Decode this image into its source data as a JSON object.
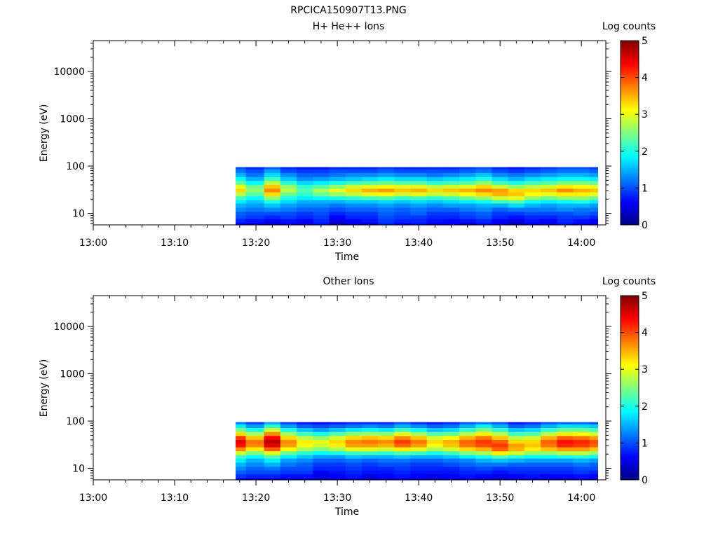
{
  "figure": {
    "title": "RPCICA150907T13.PNG"
  },
  "colorbar": {
    "label": "Log counts",
    "ticks": [
      "0",
      "1",
      "2",
      "3",
      "4",
      "5"
    ],
    "range": [
      0,
      5
    ]
  },
  "chart_data": [
    {
      "type": "heatmap",
      "title": "H+ He++ Ions",
      "xlabel": "Time",
      "ylabel": "Energy (eV)",
      "xticks": [
        "13:00",
        "13:10",
        "13:20",
        "13:30",
        "13:40",
        "13:50",
        "14:00"
      ],
      "yticks": [
        "10",
        "100",
        "1000",
        "10000"
      ],
      "xlim": [
        "13:00",
        "14:03"
      ],
      "ylim": [
        5.7,
        45000
      ],
      "yscale": "log",
      "zlabel": "Log counts",
      "zlim": [
        0,
        5
      ],
      "colormap": "jet",
      "data_coverage": {
        "start": "13:17:30",
        "end": "14:02",
        "energy_range_eV": [
          5.7,
          95
        ]
      },
      "energy_bins_eV": [
        6,
        7,
        8.5,
        10,
        12,
        15,
        18,
        21,
        26,
        31,
        37,
        45,
        54,
        66,
        80,
        95
      ],
      "times": [
        "13:17:30",
        "13:20",
        "13:22",
        "13:24",
        "13:26",
        "13:28",
        "13:30",
        "13:32",
        "13:34",
        "13:36",
        "13:38",
        "13:40",
        "13:42",
        "13:44",
        "13:46",
        "13:48",
        "13:50",
        "13:52",
        "13:54",
        "13:56",
        "13:58",
        "14:00",
        "14:02"
      ],
      "values": [
        [
          0.6,
          0.5,
          0.4,
          0.6,
          0.5,
          0.7,
          0.3,
          0.5,
          0.4,
          0.8,
          0.6,
          0.7,
          0.5,
          0.6,
          0.4,
          0.7,
          0.5,
          0.3,
          0.6,
          0.5,
          0.7,
          0.6,
          0.5
        ],
        [
          0.8,
          0.7,
          0.6,
          0.7,
          0.6,
          0.8,
          0.5,
          0.6,
          0.7,
          0.9,
          0.8,
          0.8,
          0.7,
          0.6,
          0.7,
          0.8,
          0.6,
          0.5,
          0.7,
          0.6,
          0.8,
          0.7,
          0.6
        ],
        [
          1.0,
          0.9,
          0.8,
          0.9,
          0.8,
          0.9,
          0.6,
          0.8,
          0.8,
          1.0,
          0.9,
          0.9,
          0.8,
          0.8,
          0.9,
          1.0,
          0.8,
          0.7,
          0.8,
          0.8,
          0.9,
          0.9,
          0.8
        ],
        [
          1.1,
          1.0,
          1.0,
          1.0,
          0.9,
          1.0,
          0.8,
          0.9,
          0.9,
          1.1,
          1.0,
          1.1,
          0.9,
          0.9,
          1.0,
          1.1,
          0.9,
          0.9,
          1.0,
          1.0,
          1.0,
          1.1,
          1.0
        ],
        [
          1.3,
          1.2,
          1.3,
          1.2,
          1.1,
          1.1,
          1.0,
          1.1,
          1.1,
          1.2,
          1.1,
          1.2,
          1.1,
          1.1,
          1.2,
          1.3,
          1.1,
          1.2,
          1.2,
          1.2,
          1.3,
          1.2,
          1.2
        ],
        [
          1.5,
          1.4,
          1.6,
          1.4,
          1.3,
          1.3,
          1.2,
          1.3,
          1.3,
          1.4,
          1.3,
          1.4,
          1.3,
          1.4,
          1.4,
          1.5,
          1.5,
          1.7,
          1.5,
          1.4,
          1.5,
          1.5,
          1.4
        ],
        [
          1.8,
          1.6,
          2.0,
          1.7,
          1.5,
          1.5,
          1.5,
          1.6,
          1.6,
          1.7,
          1.6,
          1.7,
          1.6,
          1.7,
          1.8,
          1.9,
          2.2,
          2.3,
          1.9,
          1.8,
          1.9,
          2.0,
          1.8
        ],
        [
          2.2,
          1.9,
          2.6,
          2.0,
          1.8,
          1.9,
          2.0,
          2.1,
          2.2,
          2.3,
          2.1,
          2.2,
          2.1,
          2.2,
          2.4,
          2.6,
          2.9,
          3.0,
          2.6,
          2.4,
          2.6,
          2.6,
          2.4
        ],
        [
          2.8,
          2.3,
          3.3,
          2.4,
          2.1,
          2.4,
          2.6,
          2.8,
          3.0,
          3.1,
          2.9,
          3.0,
          2.8,
          2.9,
          3.1,
          3.3,
          3.5,
          3.4,
          3.1,
          3.0,
          3.2,
          3.2,
          3.0
        ],
        [
          3.3,
          2.6,
          3.7,
          2.8,
          2.3,
          2.7,
          3.0,
          3.3,
          3.5,
          3.6,
          3.4,
          3.5,
          3.3,
          3.4,
          3.5,
          3.7,
          3.6,
          3.3,
          3.3,
          3.4,
          3.7,
          3.5,
          3.4
        ],
        [
          3.0,
          2.4,
          3.4,
          2.6,
          2.1,
          2.3,
          2.6,
          2.9,
          3.0,
          3.1,
          3.0,
          3.0,
          2.8,
          2.9,
          3.0,
          3.3,
          2.9,
          2.6,
          2.8,
          2.9,
          3.2,
          3.1,
          3.0
        ],
        [
          2.4,
          1.9,
          2.8,
          2.1,
          1.7,
          1.8,
          2.0,
          2.2,
          2.3,
          2.4,
          2.3,
          2.3,
          2.1,
          2.2,
          2.3,
          2.6,
          2.2,
          2.0,
          2.2,
          2.3,
          2.5,
          2.5,
          2.4
        ],
        [
          1.9,
          1.5,
          2.2,
          1.6,
          1.3,
          1.4,
          1.5,
          1.6,
          1.7,
          1.8,
          1.7,
          1.7,
          1.6,
          1.7,
          1.8,
          2.0,
          1.7,
          1.5,
          1.7,
          1.8,
          1.9,
          1.9,
          1.8
        ],
        [
          1.5,
          1.2,
          1.7,
          1.3,
          1.1,
          1.1,
          1.2,
          1.3,
          1.3,
          1.4,
          1.3,
          1.3,
          1.2,
          1.3,
          1.4,
          1.6,
          1.3,
          1.2,
          1.3,
          1.4,
          1.5,
          1.5,
          1.4
        ],
        [
          1.2,
          1.0,
          1.4,
          1.0,
          0.9,
          0.9,
          1.0,
          1.0,
          1.0,
          1.1,
          1.0,
          1.0,
          1.0,
          1.0,
          1.1,
          1.2,
          1.0,
          0.9,
          1.0,
          1.1,
          1.2,
          1.2,
          1.1
        ],
        [
          1.0,
          0.8,
          1.1,
          0.8,
          0.7,
          0.7,
          0.8,
          0.8,
          0.8,
          0.9,
          0.8,
          0.8,
          0.8,
          0.8,
          0.9,
          1.0,
          0.8,
          0.7,
          0.8,
          0.9,
          1.0,
          1.0,
          0.9
        ]
      ]
    },
    {
      "type": "heatmap",
      "title": "Other Ions",
      "xlabel": "Time",
      "ylabel": "Energy (eV)",
      "xticks": [
        "13:00",
        "13:10",
        "13:20",
        "13:30",
        "13:40",
        "13:50",
        "14:00"
      ],
      "yticks": [
        "10",
        "100",
        "1000",
        "10000"
      ],
      "xlim": [
        "13:00",
        "14:03"
      ],
      "ylim": [
        5.7,
        45000
      ],
      "yscale": "log",
      "zlabel": "Log counts",
      "zlim": [
        0,
        5
      ],
      "colormap": "jet",
      "data_coverage": {
        "start": "13:17:30",
        "end": "14:02",
        "energy_range_eV": [
          5.7,
          95
        ]
      },
      "energy_bins_eV": [
        6,
        7,
        8.5,
        10,
        12,
        15,
        18,
        21,
        26,
        31,
        37,
        45,
        54,
        66,
        80,
        95
      ],
      "times": [
        "13:17:30",
        "13:20",
        "13:22",
        "13:24",
        "13:26",
        "13:28",
        "13:30",
        "13:32",
        "13:34",
        "13:36",
        "13:38",
        "13:40",
        "13:42",
        "13:44",
        "13:46",
        "13:48",
        "13:50",
        "13:52",
        "13:54",
        "13:56",
        "13:58",
        "14:00",
        "14:02"
      ],
      "values": [
        [
          0.7,
          0.6,
          0.6,
          0.5,
          0.6,
          0.4,
          0.5,
          0.6,
          0.4,
          0.5,
          0.6,
          0.5,
          0.4,
          0.5,
          0.6,
          0.5,
          0.4,
          0.5,
          0.6,
          0.5,
          0.4,
          0.6,
          0.5
        ],
        [
          0.9,
          0.8,
          0.8,
          0.7,
          0.7,
          0.5,
          0.6,
          0.7,
          0.5,
          0.6,
          0.7,
          0.6,
          0.5,
          0.6,
          0.7,
          0.6,
          0.5,
          0.6,
          0.7,
          0.6,
          0.6,
          0.7,
          0.6
        ],
        [
          1.1,
          1.0,
          1.0,
          0.9,
          0.9,
          0.6,
          0.7,
          0.8,
          0.7,
          0.7,
          0.8,
          0.7,
          0.7,
          0.7,
          0.8,
          0.8,
          0.7,
          0.8,
          0.8,
          0.8,
          0.8,
          0.9,
          0.8
        ],
        [
          1.3,
          1.1,
          1.2,
          1.0,
          1.0,
          0.8,
          0.8,
          0.9,
          0.8,
          0.8,
          0.9,
          0.8,
          0.8,
          0.8,
          0.9,
          1.0,
          0.9,
          0.9,
          0.9,
          0.9,
          0.9,
          1.0,
          1.0
        ],
        [
          1.5,
          1.3,
          1.5,
          1.2,
          1.1,
          0.9,
          0.9,
          1.0,
          0.9,
          1.0,
          1.0,
          0.9,
          0.9,
          1.0,
          1.1,
          1.2,
          1.2,
          1.1,
          1.1,
          1.1,
          1.1,
          1.2,
          1.1
        ],
        [
          1.8,
          1.5,
          1.8,
          1.4,
          1.3,
          1.1,
          1.1,
          1.2,
          1.1,
          1.2,
          1.2,
          1.1,
          1.1,
          1.2,
          1.3,
          1.5,
          1.6,
          1.5,
          1.4,
          1.4,
          1.4,
          1.5,
          1.4
        ],
        [
          2.2,
          1.9,
          2.3,
          1.8,
          1.6,
          1.4,
          1.4,
          1.6,
          1.5,
          1.5,
          1.6,
          1.5,
          1.5,
          1.6,
          1.8,
          2.0,
          2.3,
          2.1,
          1.9,
          1.9,
          2.0,
          2.1,
          1.9
        ],
        [
          2.9,
          2.5,
          3.0,
          2.4,
          2.1,
          1.9,
          2.0,
          2.2,
          2.2,
          2.1,
          2.3,
          2.2,
          2.0,
          2.2,
          2.5,
          2.7,
          3.2,
          2.9,
          2.6,
          2.6,
          2.8,
          2.8,
          2.6
        ],
        [
          3.7,
          3.2,
          3.9,
          3.1,
          2.7,
          2.5,
          2.7,
          3.0,
          3.0,
          2.9,
          3.2,
          3.0,
          2.7,
          2.9,
          3.3,
          3.5,
          3.9,
          3.5,
          3.2,
          3.4,
          3.6,
          3.6,
          3.4
        ],
        [
          4.3,
          3.7,
          4.5,
          3.6,
          3.1,
          2.9,
          3.2,
          3.6,
          3.6,
          3.5,
          3.9,
          3.6,
          3.1,
          3.4,
          3.8,
          4.0,
          4.1,
          3.6,
          3.4,
          3.8,
          4.2,
          4.1,
          3.9
        ],
        [
          4.5,
          3.8,
          4.7,
          3.7,
          3.2,
          3.0,
          3.3,
          3.7,
          3.8,
          3.7,
          4.1,
          3.8,
          3.3,
          3.5,
          3.9,
          4.1,
          3.9,
          3.3,
          3.3,
          3.9,
          4.3,
          4.2,
          4.0
        ],
        [
          4.1,
          3.4,
          4.4,
          3.3,
          2.8,
          2.6,
          2.9,
          3.3,
          3.4,
          3.3,
          3.7,
          3.4,
          2.9,
          3.1,
          3.5,
          3.8,
          3.4,
          2.8,
          2.9,
          3.5,
          3.9,
          3.8,
          3.6
        ],
        [
          3.3,
          2.7,
          3.7,
          2.7,
          2.2,
          2.0,
          2.3,
          2.6,
          2.7,
          2.6,
          3.0,
          2.7,
          2.3,
          2.4,
          2.8,
          3.2,
          2.8,
          2.2,
          2.3,
          2.8,
          3.2,
          3.1,
          2.9
        ],
        [
          2.5,
          2.0,
          2.9,
          2.0,
          1.6,
          1.4,
          1.6,
          1.8,
          1.9,
          1.8,
          2.2,
          1.9,
          1.6,
          1.7,
          2.1,
          2.5,
          2.1,
          1.6,
          1.7,
          2.1,
          2.4,
          2.4,
          2.2
        ],
        [
          1.8,
          1.4,
          2.1,
          1.4,
          1.1,
          1.0,
          1.1,
          1.2,
          1.3,
          1.2,
          1.5,
          1.3,
          1.1,
          1.2,
          1.5,
          1.8,
          1.5,
          1.1,
          1.2,
          1.5,
          1.7,
          1.7,
          1.6
        ],
        [
          1.2,
          0.9,
          1.4,
          0.9,
          0.7,
          0.6,
          0.7,
          0.8,
          0.8,
          0.8,
          1.0,
          0.8,
          0.7,
          0.8,
          1.0,
          1.2,
          1.0,
          0.7,
          0.8,
          1.0,
          1.1,
          1.1,
          1.0
        ]
      ]
    }
  ]
}
